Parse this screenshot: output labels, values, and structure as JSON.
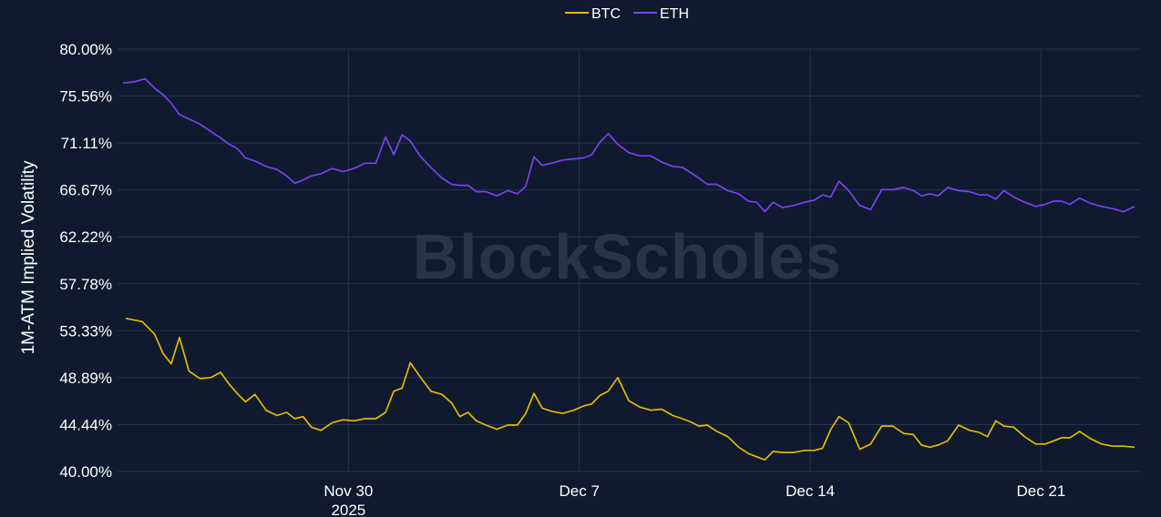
{
  "watermark": "BlockScholes",
  "chart_data": {
    "type": "line",
    "ylabel": "1M-ATM Implied Volatility",
    "xlabel": "",
    "ylim": [
      40.0,
      80.0
    ],
    "y_ticks": [
      "80.00%",
      "75.56%",
      "71.11%",
      "66.67%",
      "62.22%",
      "57.78%",
      "53.33%",
      "48.89%",
      "44.44%",
      "40.00%"
    ],
    "x_range": [
      "2025-11-23",
      "2025-12-23"
    ],
    "x_ticks": [
      {
        "date": "2025-11-30",
        "label": "Nov 30",
        "sublabel": "2025"
      },
      {
        "date": "2025-12-07",
        "label": "Dec 7",
        "sublabel": ""
      },
      {
        "date": "2025-12-14",
        "label": "Dec 14",
        "sublabel": ""
      },
      {
        "date": "2025-12-21",
        "label": "Dec 21",
        "sublabel": ""
      }
    ],
    "grid": true,
    "legend_position": "top-center",
    "series": [
      {
        "name": "BTC",
        "color": "#e6b800",
        "points": [
          [
            "2025-11-23",
            54.5
          ],
          [
            "2025-11-23",
            54.2
          ],
          [
            "2025-11-24",
            53.0
          ],
          [
            "2025-11-24",
            51.2
          ],
          [
            "2025-11-24",
            50.2
          ],
          [
            "2025-11-24",
            52.7
          ],
          [
            "2025-11-25",
            49.5
          ],
          [
            "2025-11-25",
            48.8
          ],
          [
            "2025-11-25",
            48.9
          ],
          [
            "2025-11-26",
            49.4
          ],
          [
            "2025-11-26",
            48.3
          ],
          [
            "2025-11-26",
            47.4
          ],
          [
            "2025-11-26",
            46.6
          ],
          [
            "2025-11-27",
            47.3
          ],
          [
            "2025-11-27",
            45.8
          ],
          [
            "2025-11-27",
            45.3
          ],
          [
            "2025-11-28",
            45.6
          ],
          [
            "2025-11-28",
            45.0
          ],
          [
            "2025-11-28",
            45.2
          ],
          [
            "2025-11-28",
            44.2
          ],
          [
            "2025-11-29",
            43.9
          ],
          [
            "2025-11-29",
            44.6
          ],
          [
            "2025-11-29",
            44.9
          ],
          [
            "2025-11-30",
            44.8
          ],
          [
            "2025-11-30",
            45.0
          ],
          [
            "2025-11-30",
            45.0
          ],
          [
            "2025-12-01",
            45.6
          ],
          [
            "2025-12-01",
            47.6
          ],
          [
            "2025-12-01",
            47.9
          ],
          [
            "2025-12-01",
            50.3
          ],
          [
            "2025-12-02",
            49.0
          ],
          [
            "2025-12-02",
            47.6
          ],
          [
            "2025-12-02",
            47.3
          ],
          [
            "2025-12-03",
            46.5
          ],
          [
            "2025-12-03",
            45.2
          ],
          [
            "2025-12-03",
            45.6
          ],
          [
            "2025-12-03",
            44.8
          ],
          [
            "2025-12-04",
            44.4
          ],
          [
            "2025-12-04",
            44.0
          ],
          [
            "2025-12-04",
            44.4
          ],
          [
            "2025-12-05",
            44.4
          ],
          [
            "2025-12-05",
            45.5
          ],
          [
            "2025-12-05",
            47.4
          ],
          [
            "2025-12-05",
            46.0
          ],
          [
            "2025-12-06",
            45.7
          ],
          [
            "2025-12-06",
            45.5
          ],
          [
            "2025-12-06",
            45.8
          ],
          [
            "2025-12-07",
            46.2
          ],
          [
            "2025-12-07",
            46.4
          ],
          [
            "2025-12-07",
            47.2
          ],
          [
            "2025-12-07",
            47.6
          ],
          [
            "2025-12-08",
            48.9
          ],
          [
            "2025-12-08",
            46.7
          ],
          [
            "2025-12-08",
            46.1
          ],
          [
            "2025-12-09",
            45.8
          ],
          [
            "2025-12-09",
            45.9
          ],
          [
            "2025-12-09",
            45.3
          ],
          [
            "2025-12-10",
            45.0
          ],
          [
            "2025-12-10",
            44.7
          ],
          [
            "2025-12-10",
            44.3
          ],
          [
            "2025-12-10",
            44.4
          ],
          [
            "2025-12-11",
            43.8
          ],
          [
            "2025-12-11",
            43.3
          ],
          [
            "2025-12-11",
            42.3
          ],
          [
            "2025-12-12",
            41.7
          ],
          [
            "2025-12-12",
            41.4
          ],
          [
            "2025-12-12",
            41.1
          ],
          [
            "2025-12-12",
            41.9
          ],
          [
            "2025-12-13",
            41.8
          ],
          [
            "2025-12-13",
            41.8
          ],
          [
            "2025-12-13",
            42.0
          ],
          [
            "2025-12-14",
            42.0
          ],
          [
            "2025-12-14",
            42.2
          ],
          [
            "2025-12-14",
            44.0
          ],
          [
            "2025-12-14",
            45.2
          ],
          [
            "2025-12-15",
            44.6
          ],
          [
            "2025-12-15",
            42.1
          ],
          [
            "2025-12-15",
            42.6
          ],
          [
            "2025-12-16",
            44.3
          ],
          [
            "2025-12-16",
            44.3
          ],
          [
            "2025-12-16",
            43.6
          ],
          [
            "2025-12-17",
            43.5
          ],
          [
            "2025-12-17",
            42.5
          ],
          [
            "2025-12-17",
            42.3
          ],
          [
            "2025-12-17",
            42.5
          ],
          [
            "2025-12-18",
            42.9
          ],
          [
            "2025-12-18",
            44.4
          ],
          [
            "2025-12-18",
            43.9
          ],
          [
            "2025-12-19",
            43.7
          ],
          [
            "2025-12-19",
            43.3
          ],
          [
            "2025-12-19",
            44.8
          ],
          [
            "2025-12-19",
            44.3
          ],
          [
            "2025-12-20",
            44.2
          ],
          [
            "2025-12-20",
            43.3
          ],
          [
            "2025-12-20",
            42.6
          ],
          [
            "2025-12-21",
            42.6
          ],
          [
            "2025-12-21",
            42.9
          ],
          [
            "2025-12-21",
            43.2
          ],
          [
            "2025-12-21",
            43.2
          ],
          [
            "2025-12-22",
            43.8
          ],
          [
            "2025-12-22",
            43.1
          ],
          [
            "2025-12-22",
            42.6
          ],
          [
            "2025-12-23",
            42.4
          ],
          [
            "2025-12-23",
            42.4
          ],
          [
            "2025-12-23",
            42.3
          ]
        ]
      },
      {
        "name": "ETH",
        "color": "#7b3ff2",
        "points": [
          [
            "2025-11-23",
            76.8
          ],
          [
            "2025-11-23",
            76.9
          ],
          [
            "2025-11-23",
            77.2
          ],
          [
            "2025-11-24",
            76.3
          ],
          [
            "2025-11-24",
            75.7
          ],
          [
            "2025-11-24",
            74.9
          ],
          [
            "2025-11-24",
            73.8
          ],
          [
            "2025-11-25",
            73.4
          ],
          [
            "2025-11-25",
            72.9
          ],
          [
            "2025-11-25",
            72.2
          ],
          [
            "2025-11-26",
            71.6
          ],
          [
            "2025-11-26",
            71.0
          ],
          [
            "2025-11-26",
            70.6
          ],
          [
            "2025-11-26",
            69.7
          ],
          [
            "2025-11-27",
            69.4
          ],
          [
            "2025-11-27",
            68.9
          ],
          [
            "2025-11-27",
            68.6
          ],
          [
            "2025-11-28",
            68.0
          ],
          [
            "2025-11-28",
            67.3
          ],
          [
            "2025-11-28",
            67.6
          ],
          [
            "2025-11-28",
            68.0
          ],
          [
            "2025-11-29",
            68.2
          ],
          [
            "2025-11-29",
            68.7
          ],
          [
            "2025-11-29",
            68.4
          ],
          [
            "2025-11-30",
            68.7
          ],
          [
            "2025-11-30",
            69.2
          ],
          [
            "2025-11-30",
            69.2
          ],
          [
            "2025-12-01",
            71.7
          ],
          [
            "2025-12-01",
            70.0
          ],
          [
            "2025-12-01",
            71.9
          ],
          [
            "2025-12-01",
            71.3
          ],
          [
            "2025-12-02",
            69.9
          ],
          [
            "2025-12-02",
            68.8
          ],
          [
            "2025-12-02",
            67.8
          ],
          [
            "2025-12-03",
            67.2
          ],
          [
            "2025-12-03",
            67.1
          ],
          [
            "2025-12-03",
            67.1
          ],
          [
            "2025-12-03",
            66.5
          ],
          [
            "2025-12-04",
            66.5
          ],
          [
            "2025-12-04",
            66.1
          ],
          [
            "2025-12-04",
            66.6
          ],
          [
            "2025-12-05",
            66.3
          ],
          [
            "2025-12-05",
            67.0
          ],
          [
            "2025-12-05",
            69.8
          ],
          [
            "2025-12-05",
            69.0
          ],
          [
            "2025-12-06",
            69.2
          ],
          [
            "2025-12-06",
            69.5
          ],
          [
            "2025-12-06",
            69.6
          ],
          [
            "2025-12-07",
            69.7
          ],
          [
            "2025-12-07",
            70.0
          ],
          [
            "2025-12-07",
            71.2
          ],
          [
            "2025-12-07",
            72.0
          ],
          [
            "2025-12-08",
            71.0
          ],
          [
            "2025-12-08",
            70.2
          ],
          [
            "2025-12-08",
            69.9
          ],
          [
            "2025-12-09",
            69.9
          ],
          [
            "2025-12-09",
            69.3
          ],
          [
            "2025-12-09",
            68.9
          ],
          [
            "2025-12-10",
            68.8
          ],
          [
            "2025-12-10",
            68.3
          ],
          [
            "2025-12-10",
            67.8
          ],
          [
            "2025-12-10",
            67.2
          ],
          [
            "2025-12-11",
            67.2
          ],
          [
            "2025-12-11",
            66.6
          ],
          [
            "2025-12-11",
            66.3
          ],
          [
            "2025-12-12",
            65.6
          ],
          [
            "2025-12-12",
            65.5
          ],
          [
            "2025-12-12",
            64.6
          ],
          [
            "2025-12-12",
            65.5
          ],
          [
            "2025-12-13",
            65.0
          ],
          [
            "2025-12-13",
            65.2
          ],
          [
            "2025-12-13",
            65.5
          ],
          [
            "2025-12-14",
            65.7
          ],
          [
            "2025-12-14",
            66.2
          ],
          [
            "2025-12-14",
            66.0
          ],
          [
            "2025-12-14",
            67.5
          ],
          [
            "2025-12-15",
            66.6
          ],
          [
            "2025-12-15",
            65.2
          ],
          [
            "2025-12-15",
            64.8
          ],
          [
            "2025-12-16",
            66.7
          ],
          [
            "2025-12-16",
            66.7
          ],
          [
            "2025-12-16",
            66.9
          ],
          [
            "2025-12-17",
            66.6
          ],
          [
            "2025-12-17",
            66.1
          ],
          [
            "2025-12-17",
            66.3
          ],
          [
            "2025-12-17",
            66.1
          ],
          [
            "2025-12-18",
            66.9
          ],
          [
            "2025-12-18",
            66.6
          ],
          [
            "2025-12-18",
            66.5
          ],
          [
            "2025-12-19",
            66.2
          ],
          [
            "2025-12-19",
            66.2
          ],
          [
            "2025-12-19",
            65.8
          ],
          [
            "2025-12-19",
            66.6
          ],
          [
            "2025-12-20",
            66.0
          ],
          [
            "2025-12-20",
            65.5
          ],
          [
            "2025-12-20",
            65.1
          ],
          [
            "2025-12-21",
            65.3
          ],
          [
            "2025-12-21",
            65.6
          ],
          [
            "2025-12-21",
            65.6
          ],
          [
            "2025-12-21",
            65.3
          ],
          [
            "2025-12-22",
            65.9
          ],
          [
            "2025-12-22",
            65.4
          ],
          [
            "2025-12-22",
            65.1
          ],
          [
            "2025-12-23",
            64.9
          ],
          [
            "2025-12-23",
            64.6
          ],
          [
            "2025-12-23",
            65.1
          ]
        ]
      }
    ]
  }
}
